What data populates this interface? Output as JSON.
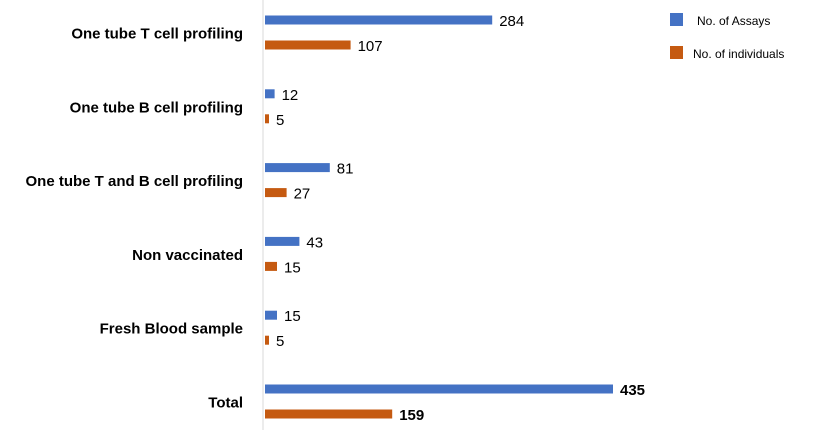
{
  "chart_data": {
    "type": "bar",
    "orientation": "horizontal",
    "categories": [
      "One tube T cell profiling",
      "One tube B cell profiling",
      "One tube T and B cell profiling",
      "Non vaccinated",
      "Fresh Blood sample",
      "Total"
    ],
    "series": [
      {
        "name": "No. of Assays",
        "color": "#4472C4",
        "values": [
          284,
          12,
          81,
          43,
          15,
          435
        ]
      },
      {
        "name": "No. of individuals",
        "color": "#C55A11",
        "values": [
          107,
          5,
          27,
          15,
          5,
          159
        ]
      }
    ],
    "bold_categories": [
      "Total"
    ],
    "title": "",
    "xlabel": "",
    "ylabel": "",
    "xlim": [
      0,
      502
    ],
    "grid": false,
    "legend_position": "top-right"
  }
}
